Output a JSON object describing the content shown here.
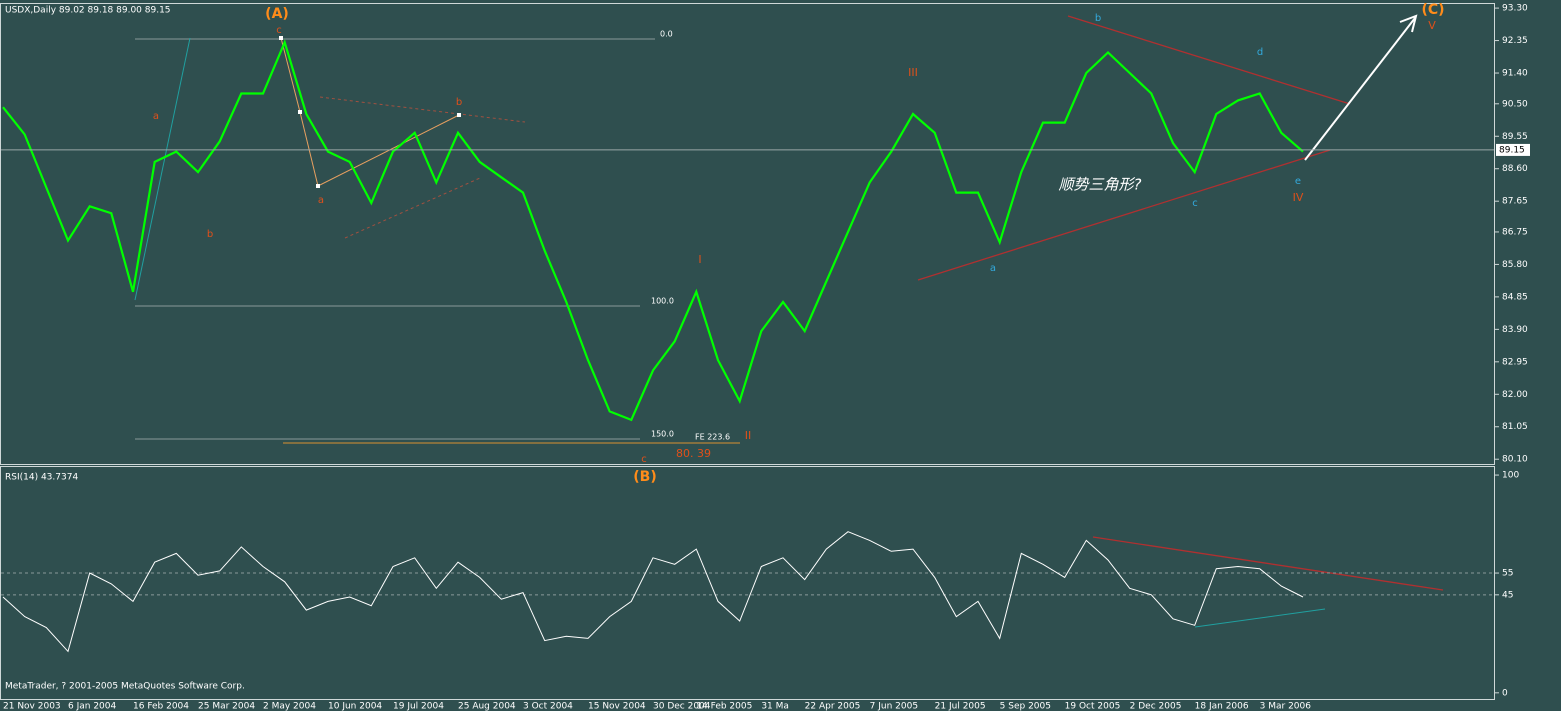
{
  "chart_data": [
    {
      "type": "line",
      "title": "USDX,Daily  89.02 89.18 89.00 89.15",
      "color": "#00ff00",
      "values": [
        90.4,
        89.6,
        88.05,
        86.5,
        87.5,
        87.3,
        85.0,
        88.8,
        89.1,
        88.5,
        89.4,
        90.8,
        90.8,
        92.3,
        90.2,
        89.1,
        88.8,
        87.6,
        89.1,
        89.65,
        88.2,
        89.65,
        88.8,
        88.35,
        87.9,
        86.2,
        84.7,
        83.0,
        81.5,
        81.25,
        82.7,
        83.55,
        85.0,
        83.0,
        81.8,
        83.85,
        84.7,
        83.85,
        85.3,
        86.75,
        88.2,
        89.1,
        90.2,
        89.65,
        87.9,
        87.9,
        86.45,
        88.5,
        89.95,
        89.95,
        91.4,
        92.0,
        91.4,
        90.8,
        89.35,
        88.5,
        90.2,
        90.6,
        90.8,
        89.65,
        89.1
      ],
      "last_price": 89.15,
      "ylim": [
        79.96,
        93.42
      ],
      "yticks": [
        {
          "value": 93.3,
          "label": "93.30"
        },
        92.35,
        {
          "value": 91.4,
          "label": "91.40"
        },
        {
          "value": 90.5,
          "label": "90.50"
        },
        89.55,
        {
          "value": 88.6,
          "label": "88.60"
        },
        87.65,
        86.75,
        {
          "value": 85.8,
          "label": "85.80"
        },
        84.85,
        {
          "value": 83.9,
          "label": "83.90"
        },
        82.95,
        {
          "value": 82.0,
          "label": "82.00"
        },
        81.05,
        {
          "value": 80.1,
          "label": "80.10"
        }
      ],
      "annotations": [
        "(A)",
        "(B)",
        "(C)",
        "c",
        "a",
        "b",
        "a",
        "b",
        "c",
        "I",
        "II",
        "III",
        "IV",
        "V",
        "a",
        "b",
        "c",
        "d",
        "e",
        "顺势三角形?",
        "0.0",
        "100.0",
        "150.0",
        "FE 223.6",
        "80. 39"
      ]
    },
    {
      "type": "line",
      "title": "RSI(14) 43.7374",
      "color": "#ffffff",
      "categories": [
        "21 Nov 2003",
        null,
        null,
        "6 Jan 2004",
        null,
        null,
        "16 Feb 2004",
        null,
        null,
        "25 Mar 2004",
        null,
        null,
        "2 May 2004",
        null,
        null,
        "10 Jun 2004",
        null,
        null,
        "19 Jul 2004",
        null,
        null,
        "25 Aug 2004",
        null,
        null,
        "3 Oct 2004",
        null,
        null,
        "15 Nov 2004",
        null,
        null,
        "30 Dec 2004",
        null,
        "14 Feb 2005",
        null,
        null,
        "31 Ma",
        null,
        "22 Apr 2005",
        null,
        null,
        "7 Jun 2005",
        null,
        null,
        "21 Jul 2005",
        null,
        null,
        "5 Sep 2005",
        null,
        null,
        "19 Oct 2005",
        null,
        null,
        "2 Dec 2005",
        null,
        null,
        "18 Jan 2006",
        null,
        null,
        "3 Mar 2006",
        null,
        null
      ],
      "values": [
        44,
        35,
        30,
        19,
        55,
        50,
        42,
        60,
        64,
        54,
        56,
        67,
        58,
        51,
        38,
        42,
        44,
        40,
        58,
        62,
        48,
        60,
        53,
        43,
        46,
        24,
        26,
        25,
        35,
        42,
        62,
        59,
        66,
        42,
        33,
        58,
        62,
        52,
        66,
        74,
        70,
        65,
        66,
        53,
        35,
        42,
        25,
        64,
        59,
        53,
        70,
        61,
        48,
        45,
        34,
        31,
        57,
        58,
        57,
        49,
        44
      ],
      "ylim": [
        -3.3,
        103.7
      ],
      "yticks": [
        0,
        45,
        55,
        100
      ],
      "levels": [
        45,
        55
      ]
    }
  ],
  "footer": "MetaTrader, ? 2001-2005 MetaQuotes Software Corp."
}
